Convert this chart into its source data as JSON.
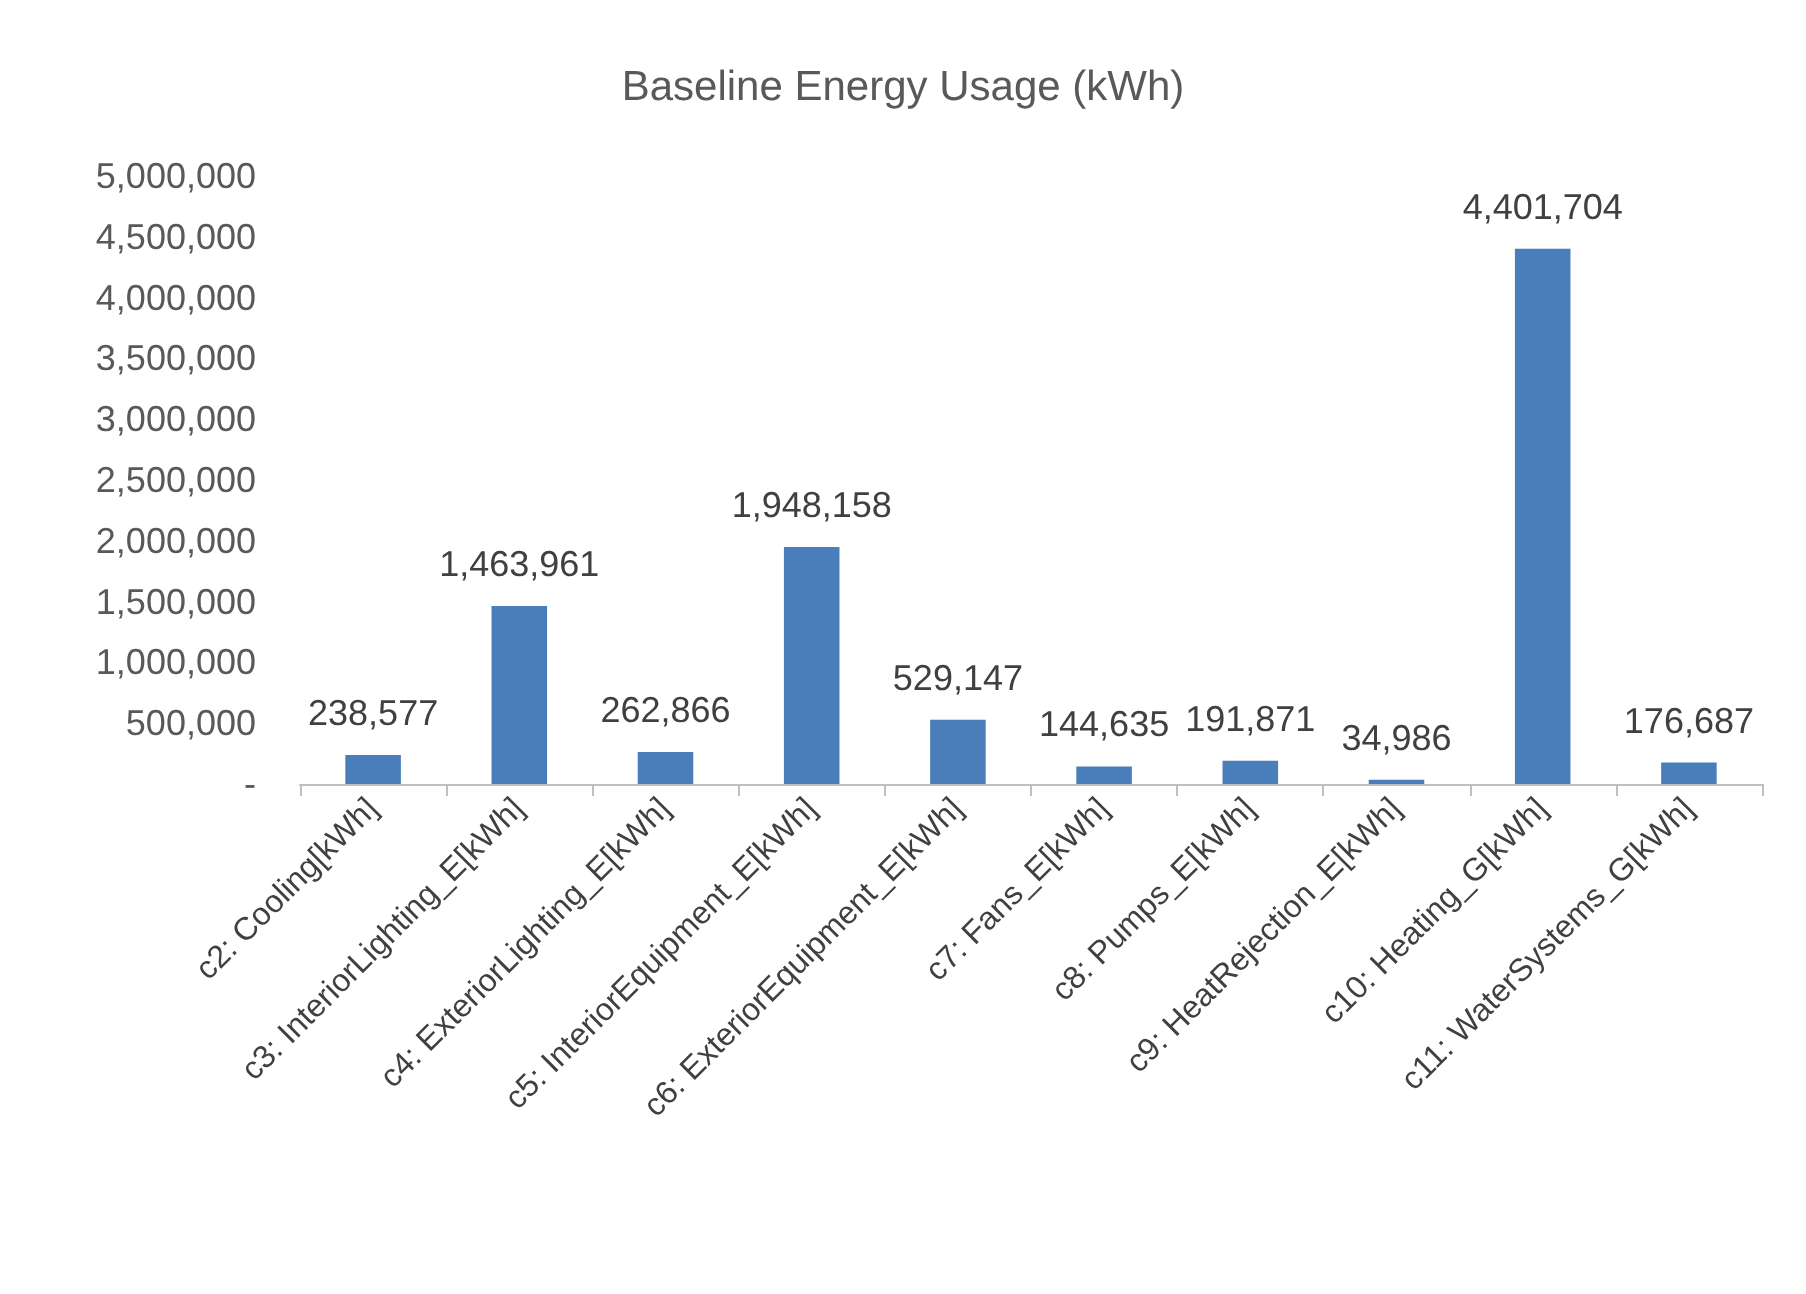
{
  "chart_data": {
    "type": "bar",
    "title": "Baseline Energy Usage (kWh)",
    "categories": [
      "c2: Cooling[kWh]",
      "c3: InteriorLighting_E[kWh]",
      "c4: ExteriorLighting_E[kWh]",
      "c5: InteriorEquipment_E[kWh]",
      "c6: ExteriorEquipment_E[kWh]",
      "c7: Fans_E[kWh]",
      "c8: Pumps_E[kWh]",
      "c9: HeatRejection_E[kWh]",
      "c10: Heating_G[kWh]",
      "c11: WaterSystems_G[kWh]"
    ],
    "values": [
      238577,
      1463961,
      262866,
      1948158,
      529147,
      144635,
      191871,
      34986,
      4401704,
      176687
    ],
    "value_labels": [
      "238,577",
      "1,463,961",
      "262,866",
      "1,948,158",
      "529,147",
      "144,635",
      "191,871",
      "34,986",
      "4,401,704",
      "176,687"
    ],
    "color": "#4a7ebb",
    "ylim": [
      0,
      5000000
    ],
    "yticks": [
      {
        "value": 0,
        "label": "-"
      },
      {
        "value": 500000,
        "label": "500,000"
      },
      {
        "value": 1000000,
        "label": "1,000,000"
      },
      {
        "value": 1500000,
        "label": "1,500,000"
      },
      {
        "value": 2000000,
        "label": "2,000,000"
      },
      {
        "value": 2500000,
        "label": "2,500,000"
      },
      {
        "value": 3000000,
        "label": "3,000,000"
      },
      {
        "value": 3500000,
        "label": "3,500,000"
      },
      {
        "value": 4000000,
        "label": "4,000,000"
      },
      {
        "value": 4500000,
        "label": "4,500,000"
      },
      {
        "value": 5000000,
        "label": "5,000,000"
      }
    ],
    "grid": false
  }
}
